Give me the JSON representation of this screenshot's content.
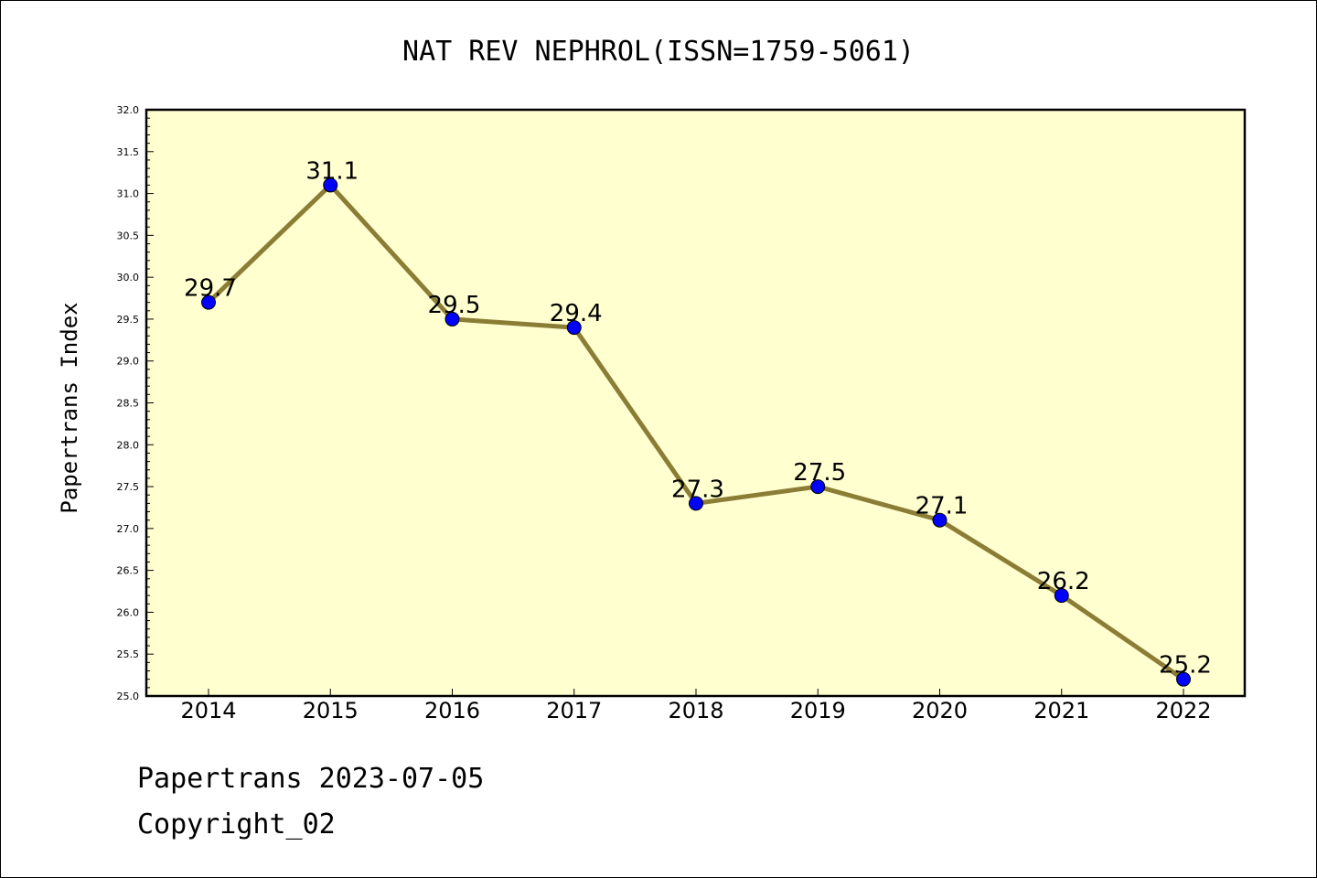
{
  "chart_data": {
    "type": "line",
    "title": "NAT REV NEPHROL(ISSN=1759-5061)",
    "xlabel": "",
    "ylabel": "Papertrans Index",
    "categories": [
      "2014",
      "2015",
      "2016",
      "2017",
      "2018",
      "2019",
      "2020",
      "2021",
      "2022"
    ],
    "series": [
      {
        "values": [
          29.7,
          31.1,
          29.5,
          29.4,
          27.3,
          27.5,
          27.1,
          26.2,
          25.2
        ]
      }
    ],
    "data_labels": [
      "29.7",
      "31.1",
      "29.5",
      "29.4",
      "27.3",
      "27.5",
      "27.1",
      "26.2",
      "25.2"
    ],
    "ylim": [
      25.0,
      32.0
    ],
    "yticks": [
      "25.0",
      "25.5",
      "26.0",
      "26.5",
      "27.0",
      "27.5",
      "28.0",
      "28.5",
      "29.0",
      "29.5",
      "30.0",
      "30.5",
      "31.0",
      "31.5",
      "32.0"
    ],
    "grid": false,
    "legend": "none",
    "colors": {
      "plot_background": "#ffffd0",
      "line": "#8b7d35",
      "marker": "#0000ff"
    }
  },
  "footer": {
    "date_text": "Papertrans 2023-07-05",
    "copyright_text": "Copyright_02"
  }
}
